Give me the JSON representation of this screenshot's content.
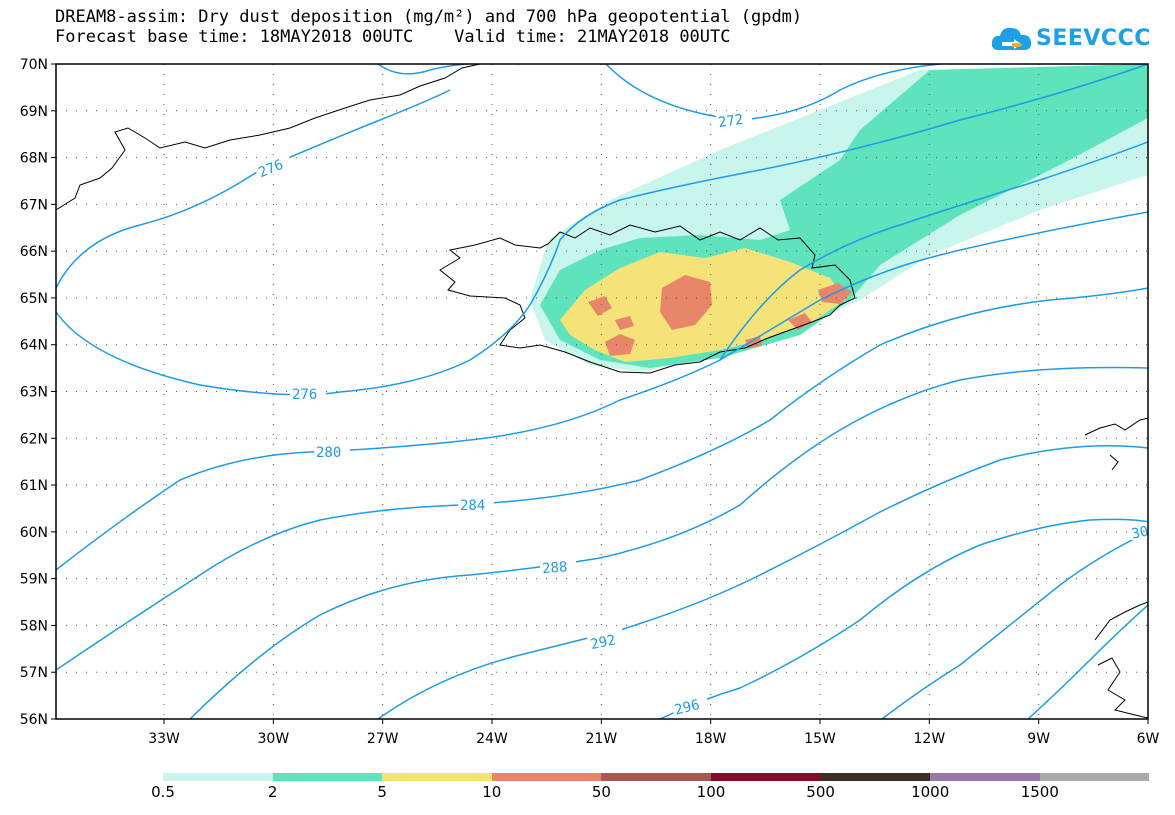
{
  "title": {
    "line1": "DREAM8-assim: Dry dust deposition (mg/m²) and 700 hPa geopotential (gpdm)",
    "line2": "Forecast base time: 18MAY2018 00UTC    Valid time: 21MAY2018 00UTC"
  },
  "logo": {
    "text": "SEEVCCC",
    "icon": "cloud-icon",
    "color": "#1ea0e6"
  },
  "map": {
    "lat_labels": [
      "70N",
      "69N",
      "68N",
      "67N",
      "66N",
      "65N",
      "64N",
      "63N",
      "62N",
      "61N",
      "60N",
      "59N",
      "58N",
      "57N",
      "56N"
    ],
    "lon_labels": [
      "33W",
      "30W",
      "27W",
      "24W",
      "21W",
      "18W",
      "15W",
      "12W",
      "9W",
      "6W"
    ],
    "contour_labels": [
      "272",
      "276",
      "276",
      "280",
      "284",
      "288",
      "292",
      "296",
      "30"
    ],
    "contour_color": "#1e9be6",
    "coast_color": "#000000",
    "grid": "dotted",
    "region": "Iceland and North Atlantic"
  },
  "legend": {
    "labels": [
      "0.5",
      "2",
      "5",
      "10",
      "50",
      "100",
      "500",
      "1000",
      "1500"
    ],
    "colors": [
      "#c8f5ec",
      "#5fe3bd",
      "#f5e37a",
      "#e8866a",
      "#a45a50",
      "#7e0f2a",
      "#3d2e25",
      "#9b76a9",
      "#a9a9a9"
    ]
  }
}
